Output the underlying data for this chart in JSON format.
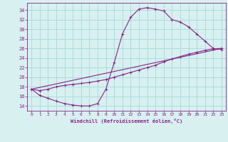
{
  "background_color": "#d8f0f0",
  "grid_color": "#aadddd",
  "line_color": "#882288",
  "xlabel": "Windchill (Refroidissement éolien,°C)",
  "xlim": [
    -0.5,
    23.5
  ],
  "ylim": [
    13.0,
    35.5
  ],
  "yticks": [
    14,
    16,
    18,
    20,
    22,
    24,
    26,
    28,
    30,
    32,
    34
  ],
  "xticks": [
    0,
    1,
    2,
    3,
    4,
    5,
    6,
    7,
    8,
    9,
    10,
    11,
    12,
    13,
    14,
    15,
    16,
    17,
    18,
    19,
    20,
    21,
    22,
    23
  ],
  "line1_x": [
    0,
    1,
    2,
    3,
    4,
    5,
    6,
    7,
    8,
    9,
    10,
    11,
    12,
    13,
    14,
    15,
    16,
    17,
    18,
    19,
    20,
    21,
    22,
    23
  ],
  "line1_y": [
    17.5,
    16.2,
    15.6,
    15.0,
    14.5,
    14.2,
    14.0,
    14.0,
    14.5,
    17.5,
    23.0,
    29.0,
    32.5,
    34.2,
    34.5,
    34.2,
    33.8,
    32.0,
    31.5,
    30.5,
    29.0,
    27.5,
    26.0,
    25.8
  ],
  "line2_x": [
    0,
    23
  ],
  "line2_y": [
    17.5,
    26.0
  ],
  "line3_x": [
    0,
    1,
    2,
    3,
    4,
    5,
    6,
    7,
    8,
    9,
    10,
    11,
    12,
    13,
    14,
    15,
    16,
    17,
    18,
    19,
    20,
    21,
    22,
    23
  ],
  "line3_y": [
    17.5,
    17.2,
    17.5,
    18.0,
    18.3,
    18.5,
    18.7,
    18.9,
    19.2,
    19.5,
    20.0,
    20.5,
    21.0,
    21.5,
    22.0,
    22.5,
    23.2,
    23.8,
    24.3,
    24.8,
    25.2,
    25.6,
    25.9,
    26.0
  ]
}
